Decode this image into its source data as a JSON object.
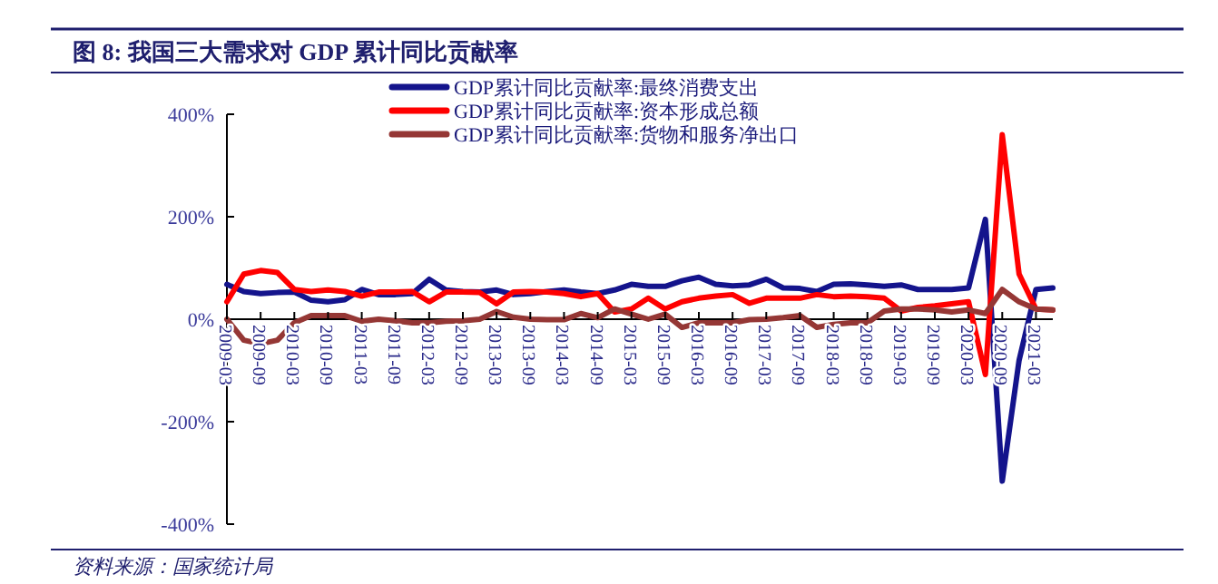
{
  "chart_data": {
    "type": "line",
    "title": "图 8: 我国三大需求对 GDP 累计同比贡献率",
    "categories": [
      "2009-03",
      null,
      "2009-09",
      null,
      "2010-03",
      null,
      "2010-09",
      null,
      "2011-03",
      null,
      "2011-09",
      null,
      "2012-03",
      null,
      "2012-09",
      null,
      "2013-03",
      null,
      "2013-09",
      null,
      "2014-03",
      null,
      "2014-09",
      null,
      "2015-03",
      null,
      "2015-09",
      null,
      "2016-03",
      null,
      "2016-09",
      null,
      "2017-03",
      null,
      "2017-09",
      null,
      "2018-03",
      null,
      "2018-09",
      null,
      "2019-03",
      null,
      "2019-09",
      null,
      "2020-03",
      null,
      "2020-09",
      null,
      "2021-03",
      null
    ],
    "series": [
      {
        "name": "GDP累计同比贡献率:最终消费支出",
        "color": "#14148c",
        "values": [
          68,
          54,
          50,
          52,
          53,
          37,
          34,
          38,
          58,
          48,
          48,
          50,
          78,
          57,
          54,
          53,
          57,
          48,
          50,
          54,
          57,
          53,
          50,
          57,
          68,
          64,
          64,
          75,
          82,
          68,
          65,
          67,
          78,
          61,
          60,
          54,
          68,
          69,
          67,
          64,
          67,
          58,
          58,
          58,
          61,
          195,
          -316,
          -80,
          58,
          61
        ]
      },
      {
        "name": "GDP累计同比贡献率:资本形成总额",
        "color": "#ff0000",
        "values": [
          34,
          88,
          95,
          91,
          58,
          54,
          57,
          54,
          45,
          53,
          53,
          54,
          34,
          53,
          53,
          52,
          30,
          53,
          54,
          53,
          50,
          44,
          50,
          14,
          20,
          41,
          20,
          34,
          41,
          45,
          48,
          31,
          41,
          41,
          41,
          48,
          44,
          45,
          44,
          41,
          16,
          23,
          26,
          30,
          34,
          -108,
          360,
          88,
          20,
          18
        ]
      },
      {
        "name": "GDP累计同比贡献率:货物和服务净出口",
        "color": "#953735",
        "values": [
          0,
          -41,
          -48,
          -41,
          -7,
          7,
          7,
          7,
          -4,
          0,
          -3,
          -7,
          -7,
          -4,
          -3,
          0,
          15,
          4,
          0,
          -1,
          -1,
          11,
          3,
          20,
          10,
          0,
          10,
          -16,
          -7,
          -7,
          -7,
          -1,
          0,
          3,
          7,
          -16,
          -10,
          -7,
          -7,
          16,
          20,
          20,
          18,
          14,
          18,
          11,
          58,
          34,
          20,
          18
        ]
      }
    ],
    "ylim": [
      -400,
      400
    ],
    "yticks": [
      {
        "value": -400,
        "label": "-400%"
      },
      {
        "value": -200,
        "label": "-200%"
      },
      {
        "value": 0,
        "label": "0%"
      },
      {
        "value": 200,
        "label": "200%"
      },
      {
        "value": 400,
        "label": "400%"
      }
    ],
    "legend": "top",
    "annotations": [
      "资料来源：国家统计局"
    ]
  }
}
